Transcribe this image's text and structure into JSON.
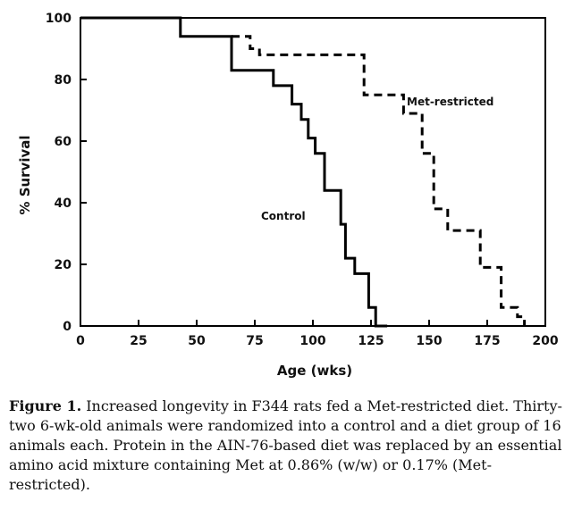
{
  "chart_data": {
    "type": "line",
    "title": "",
    "xlabel": "Age (wks)",
    "ylabel": "% Survival",
    "xlim": [
      0,
      200
    ],
    "ylim": [
      0,
      100
    ],
    "x_ticks": [
      "0",
      "25",
      "50",
      "75",
      "100",
      "125",
      "150",
      "175",
      "200"
    ],
    "y_ticks": [
      "0",
      "20",
      "40",
      "60",
      "80",
      "100"
    ],
    "grid": false,
    "legend": "none",
    "series": [
      {
        "name": "Control",
        "style": "solid",
        "color": "#000000",
        "x": [
          0,
          43,
          43,
          65,
          65,
          83,
          83,
          91,
          91,
          95,
          95,
          98,
          98,
          101,
          101,
          105,
          105,
          110,
          110,
          112,
          112,
          114,
          114,
          118,
          118,
          121,
          121,
          124,
          124,
          127,
          127,
          132,
          132
        ],
        "y": [
          100,
          100,
          94,
          94,
          83,
          83,
          78,
          78,
          72,
          72,
          67,
          67,
          61,
          61,
          56,
          56,
          44,
          44,
          44,
          44,
          33,
          33,
          22,
          22,
          17,
          17,
          17,
          17,
          6,
          6,
          0,
          0,
          0
        ]
      },
      {
        "name": "Met-restricted",
        "style": "dashed",
        "color": "#000000",
        "x": [
          65,
          73,
          73,
          77,
          77,
          122,
          122,
          125,
          125,
          139,
          139,
          143,
          143,
          147,
          147,
          149,
          149,
          152,
          152,
          155,
          155,
          158,
          158,
          165,
          165,
          172,
          172,
          177,
          177,
          181,
          181,
          185,
          185,
          188,
          188,
          191,
          191
        ],
        "y": [
          94,
          94,
          90,
          90,
          88,
          88,
          75,
          75,
          75,
          75,
          69,
          69,
          69,
          69,
          56,
          56,
          56,
          56,
          38,
          38,
          38,
          38,
          31,
          31,
          31,
          31,
          19,
          19,
          19,
          19,
          6,
          6,
          6,
          6,
          3,
          3,
          0
        ]
      }
    ],
    "annotations": [
      "Met-restricted",
      "Control"
    ]
  },
  "caption": {
    "figure_label": "Figure 1.",
    "text": " Increased longevity in F344 rats fed a Met-restricted diet. Thirty-two 6-wk-old animals were randomized into a control and a diet group of 16 animals each. Protein in the AIN-76-based diet was replaced by an essential amino acid mixture containing Met at 0.86% (w/w) or 0.17% (Met-restricted)."
  }
}
